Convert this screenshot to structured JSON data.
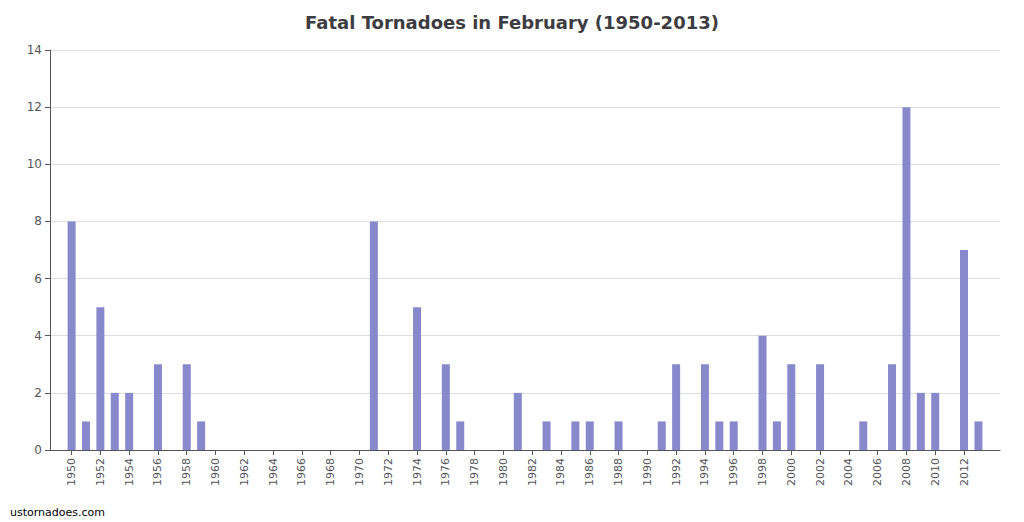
{
  "chart_data": {
    "type": "bar",
    "title": "Fatal Tornadoes in February (1950-2013)",
    "x": [
      1950,
      1951,
      1952,
      1953,
      1954,
      1955,
      1956,
      1957,
      1958,
      1959,
      1960,
      1961,
      1962,
      1963,
      1964,
      1965,
      1966,
      1967,
      1968,
      1969,
      1970,
      1971,
      1972,
      1973,
      1974,
      1975,
      1976,
      1977,
      1978,
      1979,
      1980,
      1981,
      1982,
      1983,
      1984,
      1985,
      1986,
      1987,
      1988,
      1989,
      1990,
      1991,
      1992,
      1993,
      1994,
      1995,
      1996,
      1997,
      1998,
      1999,
      2000,
      2001,
      2002,
      2003,
      2004,
      2005,
      2006,
      2007,
      2008,
      2009,
      2010,
      2011,
      2012,
      2013
    ],
    "values": [
      8,
      1,
      5,
      2,
      2,
      0,
      3,
      0,
      3,
      1,
      0,
      0,
      0,
      0,
      0,
      0,
      0,
      0,
      0,
      0,
      0,
      8,
      0,
      0,
      5,
      0,
      3,
      1,
      0,
      0,
      0,
      2,
      0,
      1,
      0,
      1,
      1,
      0,
      1,
      0,
      0,
      1,
      3,
      0,
      3,
      1,
      1,
      0,
      4,
      1,
      3,
      0,
      3,
      0,
      0,
      1,
      0,
      3,
      12,
      2,
      2,
      0,
      7,
      1
    ],
    "color": "#8888cc",
    "xlim": [
      1948.5,
      2014.5
    ],
    "xticks": [
      1950,
      1952,
      1954,
      1956,
      1958,
      1960,
      1962,
      1964,
      1966,
      1968,
      1970,
      1972,
      1974,
      1976,
      1978,
      1980,
      1982,
      1984,
      1986,
      1988,
      1990,
      1992,
      1994,
      1996,
      1998,
      2000,
      2002,
      2004,
      2006,
      2008,
      2010,
      2012
    ],
    "ylim": [
      0,
      14
    ],
    "yticks": [
      0,
      2,
      4,
      6,
      8,
      10,
      12,
      14
    ],
    "grid": true,
    "annotations": [
      "ustornadoes.com"
    ]
  }
}
